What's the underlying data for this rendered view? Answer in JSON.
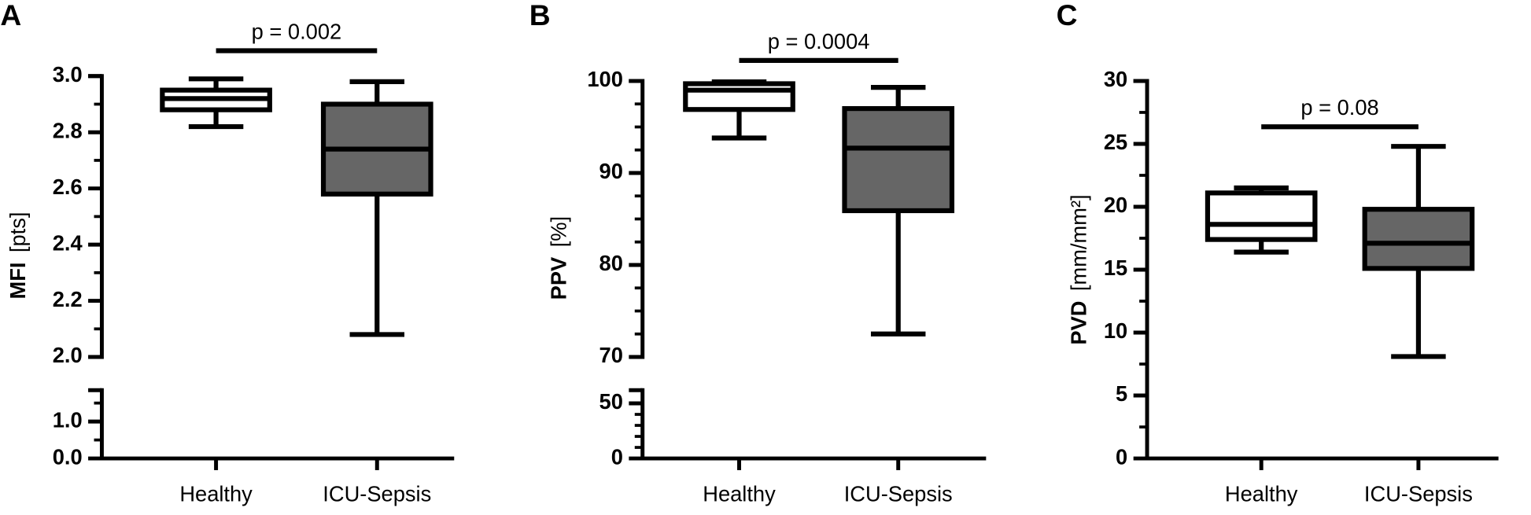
{
  "chart_data": [
    {
      "type": "box",
      "panel": "A",
      "ylabel": "MFI",
      "yunit": "[pts]",
      "annotation": "p = 0.002",
      "categories": [
        "Healthy",
        "ICU-Sepsis"
      ],
      "colors": [
        "#ffffff",
        "#666666"
      ],
      "boxes": [
        {
          "min": 2.82,
          "q1": 2.88,
          "median": 2.92,
          "q3": 2.95,
          "max": 2.99
        },
        {
          "min": 2.08,
          "q1": 2.58,
          "median": 2.74,
          "q3": 2.9,
          "max": 2.98
        }
      ],
      "axes": [
        {
          "ylim": [
            2,
            3
          ],
          "yticks": [
            {
              "value": 2,
              "label": "2.0"
            },
            {
              "value": 2.2,
              "label": "2.2"
            },
            {
              "value": 2.4,
              "label": "2.4"
            },
            {
              "value": 2.6,
              "label": "2.6"
            },
            {
              "value": 2.8,
              "label": "2.8"
            },
            {
              "value": 3,
              "label": "3.0"
            }
          ],
          "yminorticks": [
            2.1,
            2.3,
            2.5,
            2.7,
            2.9
          ]
        },
        {
          "ylim": [
            0,
            1.85
          ],
          "yticks": [
            {
              "value": 0,
              "label": "0.0"
            },
            {
              "value": 1,
              "label": "1.0"
            }
          ],
          "yminorticks": [
            0.5,
            1.5
          ]
        }
      ]
    },
    {
      "type": "box",
      "panel": "B",
      "ylabel": "PPV",
      "yunit": "[%]",
      "annotation": "p = 0.0004",
      "categories": [
        "Healthy",
        "ICU-Sepsis"
      ],
      "colors": [
        "#ffffff",
        "#666666"
      ],
      "boxes": [
        {
          "min": 93.8,
          "q1": 96.9,
          "median": 99.0,
          "q3": 99.7,
          "max": 99.9
        },
        {
          "min": 72.5,
          "q1": 85.9,
          "median": 92.7,
          "q3": 97.0,
          "max": 99.3
        }
      ],
      "axes": [
        {
          "ylim": [
            70,
            100
          ],
          "yticks": [
            70,
            80,
            90,
            100
          ],
          "yminorticks": [
            72.5,
            75,
            77.5,
            82.5,
            85,
            87.5,
            92.5,
            95,
            97.5
          ]
        },
        {
          "ylim": [
            0,
            62
          ],
          "yticks": [
            0,
            50
          ],
          "yminorticks": [
            10,
            20,
            30,
            40
          ]
        }
      ]
    },
    {
      "type": "box",
      "panel": "C",
      "ylabel": "PVD",
      "yunit": "[mm/mm²]",
      "annotation": "p = 0.08",
      "categories": [
        "Healthy",
        "ICU-Sepsis"
      ],
      "colors": [
        "#ffffff",
        "#666666"
      ],
      "boxes": [
        {
          "min": 16.4,
          "q1": 17.4,
          "median": 18.6,
          "q3": 21.1,
          "max": 21.5
        },
        {
          "min": 8.1,
          "q1": 15.1,
          "median": 17.1,
          "q3": 19.8,
          "max": 24.8
        }
      ],
      "axes": [
        {
          "ylim": [
            0,
            30
          ],
          "yticks": [
            0,
            5,
            10,
            15,
            20,
            25,
            30
          ],
          "yminorticks": [
            2.5,
            7.5,
            12.5,
            17.5,
            22.5,
            27.5
          ]
        }
      ]
    }
  ]
}
